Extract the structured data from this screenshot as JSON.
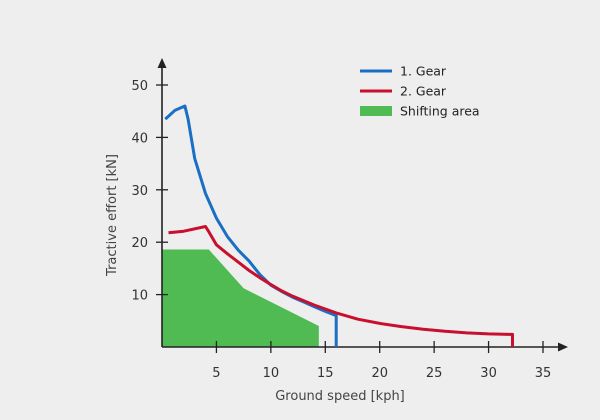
{
  "chart_data": {
    "type": "line",
    "title": "",
    "xlabel": "Ground speed [kph]",
    "ylabel": "Tractive effort [kN]",
    "xlim": [
      0,
      35
    ],
    "ylim": [
      0,
      50
    ],
    "xticks": [
      5,
      10,
      15,
      20,
      25,
      30,
      35
    ],
    "yticks": [
      10,
      20,
      30,
      40,
      50
    ],
    "grid": false,
    "legend_position": "top-right",
    "series": [
      {
        "name": "1. Gear",
        "color": "#1a6fc4",
        "x": [
          0.3,
          1.2,
          2.1,
          2.4,
          3,
          4,
          5,
          6,
          7,
          8,
          9,
          10,
          11,
          12,
          13,
          14,
          15,
          16,
          16,
          16
        ],
        "y": [
          43.5,
          45.2,
          46,
          43.5,
          36,
          29.3,
          24.6,
          21.1,
          18.5,
          16.4,
          13.8,
          11.8,
          10.6,
          9.5,
          8.6,
          7.7,
          6.8,
          6.0,
          3.0,
          0
        ]
      },
      {
        "name": "2. Gear",
        "color": "#c8102e",
        "x": [
          0.6,
          2,
          4,
          4.3,
          5,
          6,
          7,
          8,
          9,
          10,
          11,
          12,
          14,
          16,
          18,
          20,
          22,
          24,
          26,
          28,
          30,
          32,
          32.2,
          32.2
        ],
        "y": [
          21.8,
          22.1,
          23,
          22,
          19.5,
          17.8,
          16.2,
          14.6,
          13.2,
          11.9,
          10.7,
          9.7,
          8.0,
          6.5,
          5.3,
          4.5,
          3.9,
          3.4,
          3.0,
          2.7,
          2.5,
          2.4,
          2.4,
          0
        ]
      },
      {
        "name": "Shifting area",
        "color": "#4fbb52",
        "type": "area",
        "x": [
          0,
          4.3,
          7.5,
          14.4,
          14.4,
          0
        ],
        "y": [
          18.6,
          18.6,
          11.2,
          4.0,
          0,
          0
        ]
      }
    ]
  }
}
